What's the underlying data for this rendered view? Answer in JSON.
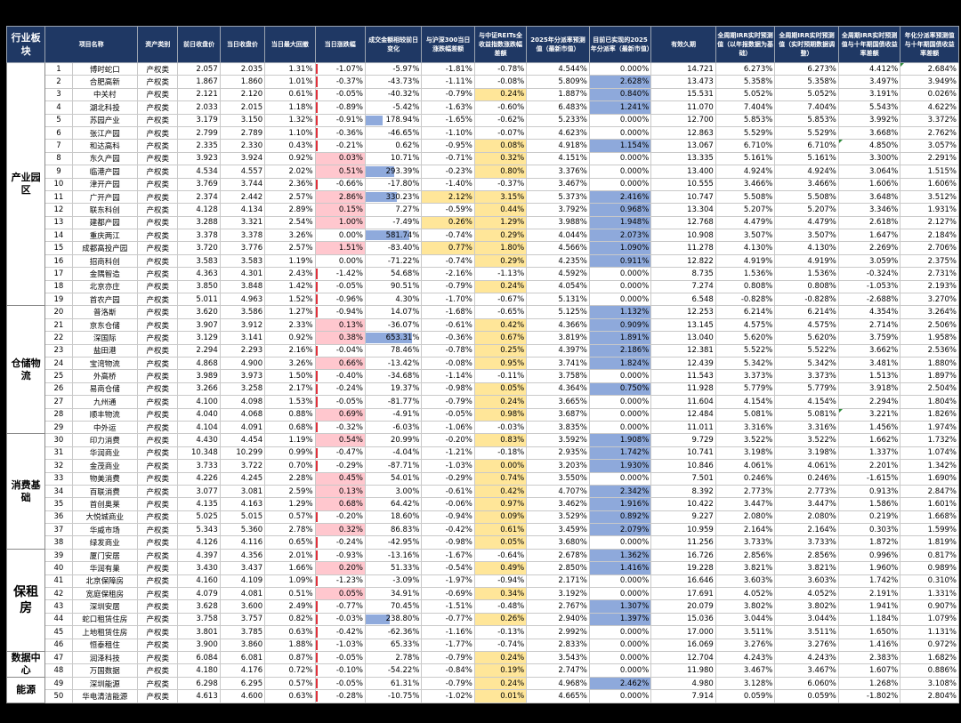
{
  "headers": [
    "行业板块",
    "项目名称",
    "资产类别",
    "前日收盘价",
    "当日收盘价",
    "当日最大回撤",
    "当日涨跌幅",
    "成交金额相较前日变化",
    "与沪深300当日涨跌幅差额",
    "与中证REITs全收益指数涨跌幅差额",
    "2025年分派率预测值（最新市值）",
    "目前已实现的2025年分派率（最新市值）",
    "有效久期",
    "全周期IRR实时预测值（以年报数据为基础）",
    "全周期IRR实时预测值（实时预期数据调整）",
    "全周期IRR实时预测值与十年期国债收益率差额",
    "年化分派率预测值与十年期国债收益率差额"
  ],
  "colors": {
    "header_bg": "#1f3864",
    "highlight_yellow": "#ffe699",
    "highlight_red": "#ffc7ce",
    "highlight_blue": "#8ea9db",
    "data_bar": "#8faadc",
    "neg_marker": "#e0313b"
  },
  "groups": [
    {
      "name": "产业园区",
      "rows": 19
    },
    {
      "name": "仓储物流",
      "rows": 10
    },
    {
      "name": "消费基础",
      "rows": 9
    },
    {
      "name": "保租房",
      "rows": 8
    },
    {
      "name": "数据中心",
      "rows": 2
    },
    {
      "name": "能源",
      "rows": 2
    }
  ],
  "rows": [
    [
      "1",
      "博时蛇口",
      "产权类",
      "2.057",
      "2.035",
      "1.31%",
      "-1.07%",
      "-5.97%",
      "-1.81%",
      "-0.78%",
      "4.544%",
      "0.000%",
      "14.721",
      "6.273%",
      "6.273%",
      "4.412%",
      "2.684%"
    ],
    [
      "2",
      "合肥高新",
      "产权类",
      "1.867",
      "1.860",
      "1.01%",
      "-0.37%",
      "-43.73%",
      "-1.11%",
      "-0.08%",
      "5.809%",
      "2.628%",
      "13.473",
      "5.358%",
      "5.358%",
      "3.497%",
      "3.949%"
    ],
    [
      "3",
      "中关村",
      "产权类",
      "2.121",
      "2.120",
      "0.61%",
      "-0.05%",
      "-40.32%",
      "-0.79%",
      "0.24%",
      "1.887%",
      "0.840%",
      "15.531",
      "5.052%",
      "5.052%",
      "3.191%",
      "0.026%"
    ],
    [
      "4",
      "湖北科投",
      "产权类",
      "2.033",
      "2.015",
      "1.18%",
      "-0.89%",
      "-5.42%",
      "-1.63%",
      "-0.60%",
      "6.483%",
      "1.241%",
      "11.070",
      "7.404%",
      "7.404%",
      "5.543%",
      "4.622%"
    ],
    [
      "5",
      "苏园产业",
      "产权类",
      "3.179",
      "3.150",
      "1.32%",
      "-0.91%",
      "178.94%",
      "-1.65%",
      "-0.62%",
      "5.233%",
      "0.000%",
      "12.700",
      "5.853%",
      "5.853%",
      "3.992%",
      "3.372%"
    ],
    [
      "6",
      "张江产园",
      "产权类",
      "2.799",
      "2.789",
      "1.10%",
      "-0.36%",
      "-46.65%",
      "-1.10%",
      "-0.07%",
      "4.623%",
      "0.000%",
      "12.863",
      "5.529%",
      "5.529%",
      "3.668%",
      "2.762%"
    ],
    [
      "7",
      "和达高科",
      "产权类",
      "2.335",
      "2.330",
      "0.43%",
      "-0.21%",
      "0.62%",
      "-0.95%",
      "0.08%",
      "4.918%",
      "1.154%",
      "13.067",
      "6.710%",
      "6.710%",
      "4.850%",
      "3.057%"
    ],
    [
      "8",
      "东久产园",
      "产权类",
      "3.923",
      "3.924",
      "0.92%",
      "0.03%",
      "10.71%",
      "-0.71%",
      "0.32%",
      "4.151%",
      "0.000%",
      "13.335",
      "5.161%",
      "5.161%",
      "3.300%",
      "2.291%"
    ],
    [
      "9",
      "临港产园",
      "产权类",
      "4.534",
      "4.557",
      "2.02%",
      "0.51%",
      "293.39%",
      "-0.23%",
      "0.80%",
      "3.376%",
      "0.000%",
      "13.400",
      "4.924%",
      "4.924%",
      "3.064%",
      "1.515%"
    ],
    [
      "10",
      "津开产园",
      "产权类",
      "3.769",
      "3.744",
      "2.36%",
      "-0.66%",
      "-17.80%",
      "-1.40%",
      "-0.37%",
      "3.467%",
      "0.000%",
      "10.555",
      "3.466%",
      "3.466%",
      "1.606%",
      "1.606%"
    ],
    [
      "11",
      "广开产园",
      "产权类",
      "2.374",
      "2.442",
      "2.57%",
      "2.86%",
      "330.23%",
      "2.12%",
      "3.15%",
      "5.373%",
      "2.416%",
      "10.747",
      "5.508%",
      "5.508%",
      "3.648%",
      "3.512%"
    ],
    [
      "12",
      "联东科创",
      "产权类",
      "4.128",
      "4.134",
      "2.89%",
      "0.15%",
      "7.27%",
      "-0.59%",
      "0.44%",
      "3.792%",
      "0.968%",
      "13.304",
      "5.207%",
      "5.207%",
      "3.346%",
      "1.931%"
    ],
    [
      "13",
      "建都产园",
      "产权类",
      "3.288",
      "3.321",
      "2.54%",
      "1.00%",
      "-7.49%",
      "0.26%",
      "1.29%",
      "3.988%",
      "1.948%",
      "12.768",
      "4.479%",
      "4.479%",
      "2.618%",
      "2.127%"
    ],
    [
      "14",
      "重庆两江",
      "产权类",
      "3.378",
      "3.378",
      "3.26%",
      "0.00%",
      "581.74%",
      "-0.74%",
      "0.29%",
      "4.044%",
      "2.073%",
      "10.908",
      "3.507%",
      "3.507%",
      "1.647%",
      "2.184%"
    ],
    [
      "15",
      "成都高投产园",
      "产权类",
      "3.720",
      "3.776",
      "2.57%",
      "1.51%",
      "-83.40%",
      "0.77%",
      "1.80%",
      "4.566%",
      "1.090%",
      "11.278",
      "4.130%",
      "4.130%",
      "2.269%",
      "2.706%"
    ],
    [
      "16",
      "招商科创",
      "产权类",
      "3.583",
      "3.583",
      "1.19%",
      "0.00%",
      "-71.22%",
      "-0.74%",
      "0.29%",
      "4.235%",
      "0.911%",
      "12.822",
      "4.919%",
      "4.919%",
      "3.059%",
      "2.375%"
    ],
    [
      "17",
      "金隅智造",
      "产权类",
      "4.363",
      "4.301",
      "2.43%",
      "-1.42%",
      "54.68%",
      "-2.16%",
      "-1.13%",
      "4.592%",
      "0.000%",
      "8.735",
      "1.536%",
      "1.536%",
      "-0.324%",
      "2.731%"
    ],
    [
      "18",
      "北京亦庄",
      "产权类",
      "3.850",
      "3.848",
      "1.42%",
      "-0.05%",
      "90.51%",
      "-0.79%",
      "0.24%",
      "4.054%",
      "0.000%",
      "7.274",
      "0.808%",
      "0.808%",
      "-1.053%",
      "2.193%"
    ],
    [
      "19",
      "首农产园",
      "产权类",
      "5.011",
      "4.963",
      "1.52%",
      "-0.96%",
      "4.30%",
      "-1.70%",
      "-0.67%",
      "5.131%",
      "0.000%",
      "6.548",
      "-0.828%",
      "-0.828%",
      "-2.688%",
      "3.270%"
    ],
    [
      "20",
      "普洛斯",
      "产权类",
      "3.620",
      "3.586",
      "1.27%",
      "-0.94%",
      "14.07%",
      "-1.68%",
      "-0.65%",
      "5.125%",
      "1.132%",
      "12.253",
      "6.214%",
      "6.214%",
      "4.354%",
      "3.264%"
    ],
    [
      "21",
      "京东仓储",
      "产权类",
      "3.907",
      "3.912",
      "2.33%",
      "0.13%",
      "-36.07%",
      "-0.61%",
      "0.42%",
      "4.366%",
      "0.909%",
      "13.145",
      "4.575%",
      "4.575%",
      "2.714%",
      "2.506%"
    ],
    [
      "22",
      "深国际",
      "产权类",
      "3.129",
      "3.141",
      "0.92%",
      "0.38%",
      "653.31%",
      "-0.36%",
      "0.67%",
      "3.819%",
      "1.891%",
      "13.040",
      "5.620%",
      "5.620%",
      "3.759%",
      "1.958%"
    ],
    [
      "23",
      "盐田港",
      "产权类",
      "2.294",
      "2.293",
      "2.16%",
      "-0.04%",
      "78.46%",
      "-0.78%",
      "0.25%",
      "4.397%",
      "2.186%",
      "12.381",
      "5.522%",
      "5.522%",
      "3.662%",
      "2.536%"
    ],
    [
      "24",
      "宝湾物流",
      "产权类",
      "4.868",
      "4.900",
      "3.26%",
      "0.66%",
      "-13.42%",
      "-0.08%",
      "0.95%",
      "3.741%",
      "1.824%",
      "12.439",
      "5.342%",
      "5.342%",
      "3.481%",
      "1.880%"
    ],
    [
      "25",
      "外高桥",
      "产权类",
      "3.989",
      "3.973",
      "1.50%",
      "-0.40%",
      "-34.68%",
      "-1.14%",
      "-0.11%",
      "3.758%",
      "0.000%",
      "11.543",
      "3.373%",
      "3.373%",
      "1.513%",
      "1.897%"
    ],
    [
      "26",
      "易商仓储",
      "产权类",
      "3.266",
      "3.258",
      "2.17%",
      "-0.24%",
      "19.37%",
      "-0.98%",
      "0.05%",
      "4.364%",
      "0.750%",
      "11.928",
      "5.779%",
      "5.779%",
      "3.918%",
      "2.504%"
    ],
    [
      "27",
      "九州通",
      "产权类",
      "4.100",
      "4.098",
      "1.53%",
      "-0.05%",
      "-81.77%",
      "-0.79%",
      "0.24%",
      "3.665%",
      "0.000%",
      "11.604",
      "4.154%",
      "4.154%",
      "2.294%",
      "1.804%"
    ],
    [
      "28",
      "顺丰物流",
      "产权类",
      "4.040",
      "4.068",
      "0.88%",
      "0.69%",
      "-4.91%",
      "-0.05%",
      "0.98%",
      "3.687%",
      "0.000%",
      "12.484",
      "5.081%",
      "5.081%",
      "3.221%",
      "1.826%"
    ],
    [
      "29",
      "中外运",
      "产权类",
      "4.104",
      "4.091",
      "0.68%",
      "-0.32%",
      "-6.03%",
      "-1.06%",
      "-0.03%",
      "3.835%",
      "0.000%",
      "11.011",
      "3.316%",
      "3.316%",
      "1.456%",
      "1.974%"
    ],
    [
      "30",
      "印力消费",
      "产权类",
      "4.430",
      "4.454",
      "1.19%",
      "0.54%",
      "20.99%",
      "-0.20%",
      "0.83%",
      "3.592%",
      "1.908%",
      "9.729",
      "3.522%",
      "3.522%",
      "1.662%",
      "1.732%"
    ],
    [
      "31",
      "华润商业",
      "产权类",
      "10.348",
      "10.299",
      "0.99%",
      "-0.47%",
      "-4.04%",
      "-1.21%",
      "-0.18%",
      "2.935%",
      "1.742%",
      "10.741",
      "3.198%",
      "3.198%",
      "1.337%",
      "1.074%"
    ],
    [
      "32",
      "金茂商业",
      "产权类",
      "3.733",
      "3.722",
      "0.70%",
      "-0.29%",
      "-87.71%",
      "-1.03%",
      "0.00%",
      "3.203%",
      "1.930%",
      "10.846",
      "4.061%",
      "4.061%",
      "2.201%",
      "1.342%"
    ],
    [
      "33",
      "物美消费",
      "产权类",
      "4.226",
      "4.245",
      "2.28%",
      "0.45%",
      "54.01%",
      "-0.29%",
      "0.74%",
      "3.550%",
      "0.000%",
      "7.501",
      "0.246%",
      "0.246%",
      "-1.615%",
      "1.690%"
    ],
    [
      "34",
      "百联消费",
      "产权类",
      "3.077",
      "3.081",
      "2.59%",
      "0.13%",
      "3.00%",
      "-0.61%",
      "0.42%",
      "4.707%",
      "2.342%",
      "8.392",
      "2.773%",
      "2.773%",
      "0.913%",
      "2.847%"
    ],
    [
      "35",
      "首创奥莱",
      "产权类",
      "4.135",
      "4.163",
      "1.29%",
      "0.68%",
      "64.42%",
      "-0.06%",
      "0.97%",
      "3.462%",
      "1.916%",
      "10.422",
      "3.447%",
      "3.447%",
      "1.586%",
      "1.601%"
    ],
    [
      "36",
      "大悦城商业",
      "产权类",
      "5.025",
      "5.015",
      "0.57%",
      "-0.20%",
      "18.60%",
      "-0.94%",
      "0.09%",
      "3.529%",
      "0.892%",
      "9.227",
      "2.080%",
      "2.080%",
      "0.219%",
      "1.668%"
    ],
    [
      "37",
      "华威市场",
      "产权类",
      "5.343",
      "5.360",
      "2.78%",
      "0.32%",
      "86.83%",
      "-0.42%",
      "0.61%",
      "3.459%",
      "2.079%",
      "10.959",
      "2.164%",
      "2.164%",
      "0.303%",
      "1.599%"
    ],
    [
      "38",
      "绿发商业",
      "产权类",
      "4.126",
      "4.116",
      "0.65%",
      "-0.24%",
      "-42.95%",
      "-0.98%",
      "0.05%",
      "3.680%",
      "0.000%",
      "11.256",
      "3.733%",
      "3.733%",
      "1.872%",
      "1.819%"
    ],
    [
      "39",
      "厦门安居",
      "产权类",
      "4.397",
      "4.356",
      "2.01%",
      "-0.93%",
      "-13.16%",
      "-1.67%",
      "-0.64%",
      "2.678%",
      "1.362%",
      "16.726",
      "2.856%",
      "2.856%",
      "0.996%",
      "0.817%"
    ],
    [
      "40",
      "华润有巢",
      "产权类",
      "3.430",
      "3.437",
      "1.66%",
      "0.20%",
      "51.33%",
      "-0.54%",
      "0.49%",
      "2.850%",
      "1.416%",
      "19.228",
      "3.821%",
      "3.821%",
      "1.960%",
      "0.989%"
    ],
    [
      "41",
      "北京保障房",
      "产权类",
      "4.160",
      "4.109",
      "1.09%",
      "-1.23%",
      "-3.09%",
      "-1.97%",
      "-0.94%",
      "2.171%",
      "0.000%",
      "16.646",
      "3.603%",
      "3.603%",
      "1.742%",
      "0.310%"
    ],
    [
      "42",
      "宽庭保租房",
      "产权类",
      "4.079",
      "4.081",
      "0.51%",
      "0.05%",
      "34.91%",
      "-0.69%",
      "0.34%",
      "3.192%",
      "0.000%",
      "17.691",
      "4.052%",
      "4.052%",
      "2.191%",
      "1.331%"
    ],
    [
      "43",
      "深圳安居",
      "产权类",
      "3.628",
      "3.600",
      "2.49%",
      "-0.77%",
      "70.45%",
      "-1.51%",
      "-0.48%",
      "2.767%",
      "1.307%",
      "20.079",
      "3.802%",
      "3.802%",
      "1.941%",
      "0.907%"
    ],
    [
      "44",
      "蛇口租赁住房",
      "产权类",
      "3.758",
      "3.757",
      "0.82%",
      "-0.03%",
      "238.80%",
      "-0.77%",
      "0.26%",
      "2.940%",
      "1.397%",
      "15.036",
      "3.044%",
      "3.044%",
      "1.184%",
      "1.079%"
    ],
    [
      "45",
      "上地租赁住房",
      "产权类",
      "3.801",
      "3.785",
      "0.63%",
      "-0.42%",
      "-62.36%",
      "-1.16%",
      "-0.13%",
      "2.992%",
      "0.000%",
      "17.000",
      "3.511%",
      "3.511%",
      "1.650%",
      "1.131%"
    ],
    [
      "46",
      "恒泰租住",
      "产权类",
      "3.900",
      "3.860",
      "1.88%",
      "-1.03%",
      "65.33%",
      "-1.77%",
      "-0.74%",
      "2.833%",
      "0.000%",
      "16.069",
      "3.276%",
      "3.276%",
      "1.416%",
      "0.972%"
    ],
    [
      "47",
      "润泽科技",
      "产权类",
      "6.084",
      "6.081",
      "0.87%",
      "-0.05%",
      "2.78%",
      "-0.79%",
      "0.24%",
      "3.543%",
      "0.000%",
      "12.704",
      "4.243%",
      "4.243%",
      "2.383%",
      "1.682%"
    ],
    [
      "48",
      "万国数据",
      "产权类",
      "4.180",
      "4.176",
      "0.72%",
      "-0.10%",
      "-54.22%",
      "-0.84%",
      "0.19%",
      "2.747%",
      "0.000%",
      "11.980",
      "3.467%",
      "3.467%",
      "1.607%",
      "0.886%"
    ],
    [
      "49",
      "深圳能源",
      "产权类",
      "6.298",
      "6.295",
      "0.57%",
      "-0.05%",
      "61.31%",
      "-0.79%",
      "0.24%",
      "4.968%",
      "2.462%",
      "4.980",
      "3.128%",
      "6.060%",
      "1.268%",
      "3.108%"
    ],
    [
      "50",
      "华电清洁能源",
      "产权类",
      "4.613",
      "4.600",
      "0.63%",
      "-0.28%",
      "-10.75%",
      "-1.02%",
      "0.01%",
      "4.665%",
      "0.000%",
      "7.914",
      "0.059%",
      "0.059%",
      "-1.802%",
      "2.804%"
    ]
  ]
}
